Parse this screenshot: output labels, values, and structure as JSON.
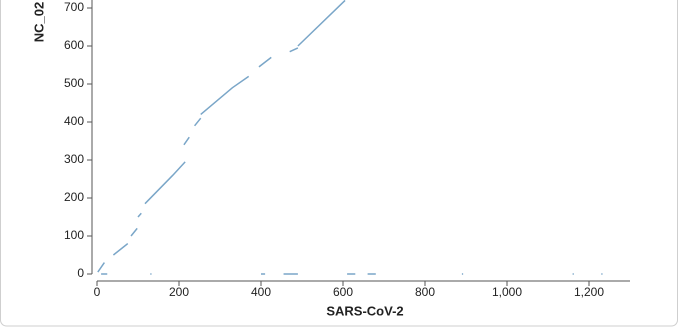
{
  "chart_data": {
    "type": "line",
    "x_label": "SARS-CoV-2",
    "y_label": "NC_02",
    "color": "#7aa6c8",
    "x": [
      2,
      18,
      null,
      40,
      75,
      null,
      83,
      98,
      null,
      100,
      108,
      null,
      117,
      185,
      215,
      null,
      212,
      225,
      null,
      238,
      253,
      null,
      253,
      330,
      370,
      null,
      395,
      425,
      null,
      470,
      490,
      null,
      490,
      605,
      null,
      10,
      25,
      null,
      130,
      133,
      null,
      400,
      410,
      null,
      455,
      490,
      null,
      610,
      630,
      null,
      660,
      680,
      null,
      890,
      893,
      null,
      1160,
      1163,
      null,
      1230,
      1233
    ],
    "values": [
      5,
      30,
      null,
      50,
      80,
      null,
      100,
      120,
      null,
      150,
      160,
      null,
      185,
      260,
      295,
      null,
      340,
      360,
      null,
      390,
      410,
      null,
      420,
      490,
      520,
      null,
      545,
      570,
      null,
      585,
      595,
      null,
      600,
      720,
      null,
      0,
      0,
      null,
      0,
      0,
      null,
      0,
      0,
      null,
      0,
      0,
      null,
      0,
      0,
      null,
      0,
      0,
      null,
      0,
      0,
      null,
      0,
      0,
      null,
      0,
      0
    ],
    "xlim": [
      0,
      1300
    ],
    "ylim": [
      0,
      720
    ],
    "xticks": [
      0,
      200,
      400,
      600,
      800,
      {
        "value": 1000,
        "label": "1,000"
      },
      {
        "value": 1200,
        "label": "1,200"
      }
    ],
    "yticks": [
      0,
      100,
      200,
      300,
      400,
      500,
      600,
      700
    ]
  }
}
